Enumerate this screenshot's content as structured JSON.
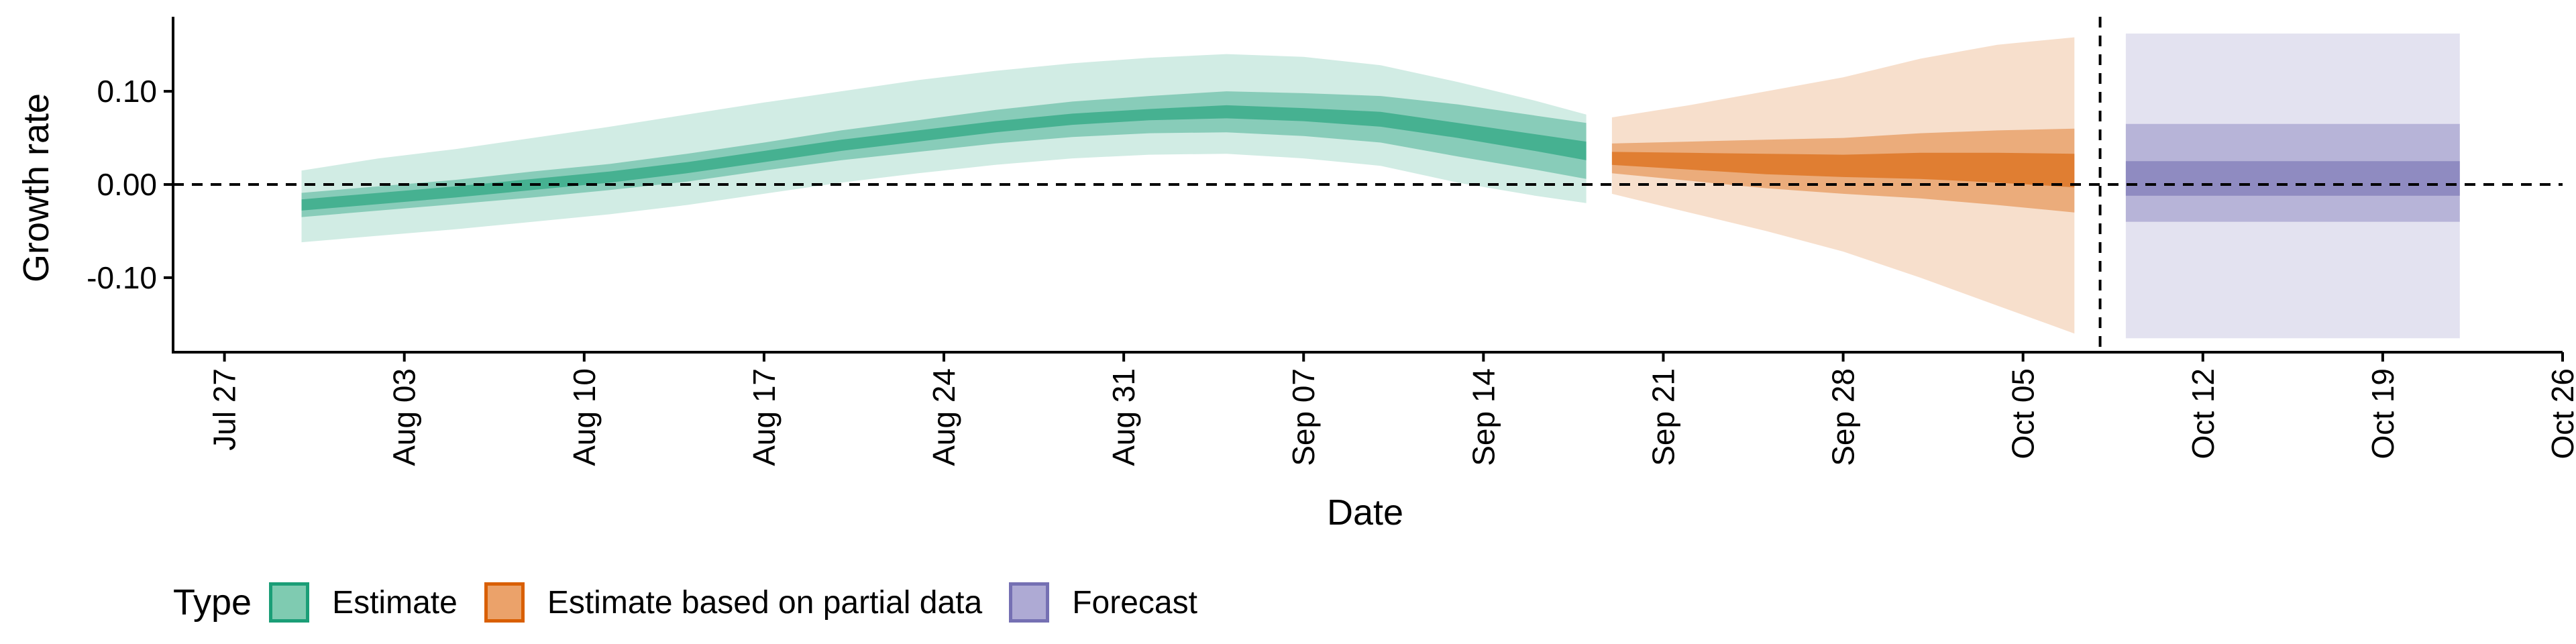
{
  "chart_data": {
    "type": "area",
    "xlabel": "Date",
    "ylabel": "Growth rate",
    "ylim": [
      -0.18,
      0.18
    ],
    "x_range": [
      "2021-07-25",
      "2021-10-26"
    ],
    "xticks": [
      {
        "date": "2021-07-27",
        "label": "Jul 27"
      },
      {
        "date": "2021-08-03",
        "label": "Aug 03"
      },
      {
        "date": "2021-08-10",
        "label": "Aug 10"
      },
      {
        "date": "2021-08-17",
        "label": "Aug 17"
      },
      {
        "date": "2021-08-24",
        "label": "Aug 24"
      },
      {
        "date": "2021-08-31",
        "label": "Aug 31"
      },
      {
        "date": "2021-09-07",
        "label": "Sep 07"
      },
      {
        "date": "2021-09-14",
        "label": "Sep 14"
      },
      {
        "date": "2021-09-21",
        "label": "Sep 21"
      },
      {
        "date": "2021-09-28",
        "label": "Sep 28"
      },
      {
        "date": "2021-10-05",
        "label": "Oct 05"
      },
      {
        "date": "2021-10-12",
        "label": "Oct 12"
      },
      {
        "date": "2021-10-19",
        "label": "Oct 19"
      },
      {
        "date": "2021-10-26",
        "label": "Oct 26"
      }
    ],
    "yticks": [
      {
        "value": 0.1,
        "label": "0.10"
      },
      {
        "value": 0.0,
        "label": "0.00"
      },
      {
        "value": -0.1,
        "label": "-0.10"
      }
    ],
    "hline_y": 0,
    "vline_date": "2021-10-08",
    "grid": false,
    "legend_position": "bottom",
    "legend": {
      "title": "Type",
      "items": [
        {
          "label": "Estimate",
          "fill": "#7fcbb1",
          "border": "#1b9e77"
        },
        {
          "label": "Estimate based on partial data",
          "fill": "#eba26a",
          "border": "#d95f02"
        },
        {
          "label": "Forecast",
          "fill": "#aeaad4",
          "border": "#7570b3"
        }
      ]
    },
    "series": [
      {
        "name": "Estimate",
        "color": "#1b9e77",
        "x": [
          "2021-07-30",
          "2021-08-02",
          "2021-08-05",
          "2021-08-08",
          "2021-08-11",
          "2021-08-14",
          "2021-08-17",
          "2021-08-20",
          "2021-08-23",
          "2021-08-26",
          "2021-08-29",
          "2021-09-01",
          "2021-09-04",
          "2021-09-07",
          "2021-09-10",
          "2021-09-13",
          "2021-09-16",
          "2021-09-18"
        ],
        "median": [
          -0.022,
          -0.015,
          -0.008,
          0.0,
          0.008,
          0.018,
          0.03,
          0.042,
          0.052,
          0.062,
          0.07,
          0.075,
          0.078,
          0.075,
          0.07,
          0.058,
          0.045,
          0.036
        ],
        "ci20": [
          [
            -0.028,
            -0.016
          ],
          [
            -0.021,
            -0.009
          ],
          [
            -0.014,
            -0.002
          ],
          [
            -0.006,
            0.006
          ],
          [
            0.002,
            0.014
          ],
          [
            0.012,
            0.024
          ],
          [
            0.024,
            0.036
          ],
          [
            0.036,
            0.048
          ],
          [
            0.046,
            0.058
          ],
          [
            0.056,
            0.068
          ],
          [
            0.064,
            0.076
          ],
          [
            0.069,
            0.081
          ],
          [
            0.071,
            0.085
          ],
          [
            0.068,
            0.082
          ],
          [
            0.062,
            0.078
          ],
          [
            0.05,
            0.066
          ],
          [
            0.036,
            0.054
          ],
          [
            0.026,
            0.046
          ]
        ],
        "ci50": [
          [
            -0.035,
            -0.009
          ],
          [
            -0.028,
            -0.002
          ],
          [
            -0.021,
            0.005
          ],
          [
            -0.014,
            0.014
          ],
          [
            -0.006,
            0.022
          ],
          [
            0.003,
            0.033
          ],
          [
            0.015,
            0.045
          ],
          [
            0.026,
            0.058
          ],
          [
            0.035,
            0.069
          ],
          [
            0.044,
            0.08
          ],
          [
            0.051,
            0.089
          ],
          [
            0.055,
            0.095
          ],
          [
            0.056,
            0.1
          ],
          [
            0.052,
            0.098
          ],
          [
            0.045,
            0.095
          ],
          [
            0.03,
            0.086
          ],
          [
            0.016,
            0.074
          ],
          [
            0.006,
            0.066
          ]
        ],
        "ci90": [
          [
            -0.062,
            0.015
          ],
          [
            -0.055,
            0.028
          ],
          [
            -0.048,
            0.038
          ],
          [
            -0.04,
            0.05
          ],
          [
            -0.032,
            0.062
          ],
          [
            -0.022,
            0.075
          ],
          [
            -0.01,
            0.088
          ],
          [
            0.002,
            0.1
          ],
          [
            0.012,
            0.112
          ],
          [
            0.021,
            0.122
          ],
          [
            0.028,
            0.13
          ],
          [
            0.032,
            0.136
          ],
          [
            0.033,
            0.14
          ],
          [
            0.028,
            0.137
          ],
          [
            0.02,
            0.128
          ],
          [
            0.002,
            0.11
          ],
          [
            -0.012,
            0.09
          ],
          [
            -0.02,
            0.075
          ]
        ]
      },
      {
        "name": "Estimate based on partial data",
        "color": "#d95f02",
        "x": [
          "2021-09-19",
          "2021-09-22",
          "2021-09-25",
          "2021-09-28",
          "2021-10-01",
          "2021-10-04",
          "2021-10-07"
        ],
        "median": [
          0.028,
          0.025,
          0.022,
          0.02,
          0.02,
          0.018,
          0.015
        ],
        "ci20": [
          [
            0.021,
            0.035
          ],
          [
            0.016,
            0.034
          ],
          [
            0.011,
            0.033
          ],
          [
            0.008,
            0.032
          ],
          [
            0.006,
            0.034
          ],
          [
            0.002,
            0.034
          ],
          [
            -0.003,
            0.033
          ]
        ],
        "ci50": [
          [
            0.012,
            0.044
          ],
          [
            0.004,
            0.046
          ],
          [
            -0.004,
            0.048
          ],
          [
            -0.01,
            0.05
          ],
          [
            -0.015,
            0.055
          ],
          [
            -0.022,
            0.058
          ],
          [
            -0.03,
            0.06
          ]
        ],
        "ci90": [
          [
            -0.01,
            0.072
          ],
          [
            -0.03,
            0.085
          ],
          [
            -0.05,
            0.1
          ],
          [
            -0.072,
            0.115
          ],
          [
            -0.1,
            0.135
          ],
          [
            -0.13,
            0.15
          ],
          [
            -0.16,
            0.158
          ]
        ]
      },
      {
        "name": "Forecast",
        "color": "#7570b3",
        "x": [
          "2021-10-09",
          "2021-10-22"
        ],
        "median": [
          0.0,
          0.0
        ],
        "ci20": [
          [
            -0.012,
            0.025
          ],
          [
            -0.012,
            0.025
          ]
        ],
        "ci50": [
          [
            -0.04,
            0.065
          ],
          [
            -0.04,
            0.065
          ]
        ],
        "ci90": [
          [
            -0.165,
            0.162
          ],
          [
            -0.165,
            0.162
          ]
        ]
      }
    ]
  }
}
